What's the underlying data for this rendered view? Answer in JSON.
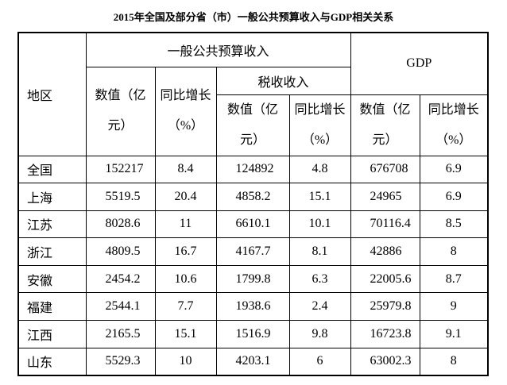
{
  "title": "2015年全国及部分省（市）一般公共预算收入与GDP相关关系",
  "header": {
    "region": "地区",
    "budget": "一般公共预算收入",
    "tax": "税收收入",
    "gdp": "GDP",
    "budget_value": "数值（亿元）",
    "budget_growth": "同比增长（%）",
    "tax_value": "数值（亿元）",
    "tax_growth": "同比增长（%）",
    "gdp_value": "数值（亿元）",
    "gdp_growth": "同比增长（%）"
  },
  "table": {
    "rows": [
      [
        "全国",
        "152217",
        "8.4",
        "124892",
        "4.8",
        "676708",
        "6.9"
      ],
      [
        "上海",
        "5519.5",
        "20.4",
        "4858.2",
        "15.1",
        "24965",
        "6.9"
      ],
      [
        "江苏",
        "8028.6",
        "11",
        "6610.1",
        "10.1",
        "70116.4",
        "8.5"
      ],
      [
        "浙江",
        "4809.5",
        "16.7",
        "4167.7",
        "8.1",
        "42886",
        "8"
      ],
      [
        "安徽",
        "2454.2",
        "10.6",
        "1799.8",
        "6.3",
        "22005.6",
        "8.7"
      ],
      [
        "福建",
        "2544.1",
        "7.7",
        "1938.6",
        "2.4",
        "25979.8",
        "9"
      ],
      [
        "江西",
        "2165.5",
        "15.1",
        "1516.9",
        "9.8",
        "16723.8",
        "9.1"
      ],
      [
        "山东",
        "5529.3",
        "10",
        "4203.1",
        "6",
        "63002.3",
        "8"
      ]
    ]
  }
}
